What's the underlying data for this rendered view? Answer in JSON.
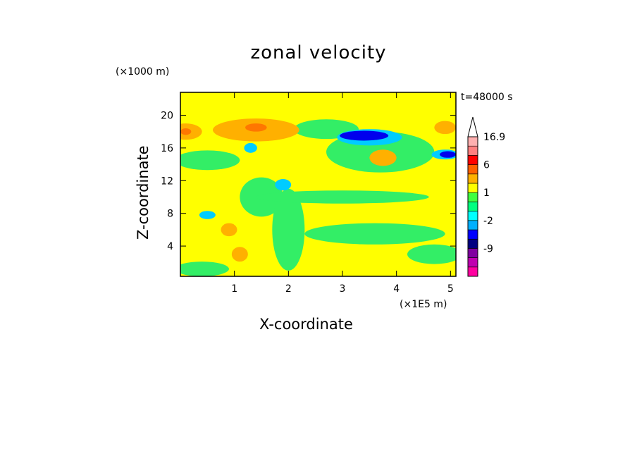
{
  "chart_data": {
    "type": "heatmap",
    "title": "zonal velocity",
    "xlabel": "X-coordinate",
    "ylabel": "Z-coordinate",
    "x_multiplier": "(×1E5 m)",
    "y_multiplier": "(×1000 m)",
    "time_label": "t=48000 s",
    "xlim": [
      0,
      5.1
    ],
    "ylim": [
      0.3,
      22.8
    ],
    "x_ticks": [
      "1",
      "2",
      "3",
      "4",
      "5"
    ],
    "x_tick_values": [
      1,
      2,
      3,
      4,
      5
    ],
    "y_ticks": [
      "20",
      "16",
      "12",
      "8",
      "4"
    ],
    "y_tick_values": [
      20,
      16,
      12,
      8,
      4
    ],
    "colorbar": {
      "labels": [
        "16.9",
        "6",
        "1",
        "-2",
        "-9"
      ],
      "levels": [
        -15,
        -12,
        -9,
        -6,
        -3,
        -2,
        -1,
        0,
        1,
        2,
        3,
        6,
        9,
        12,
        16.9
      ],
      "colors": [
        "#ff00a0",
        "#c000b0",
        "#8000a0",
        "#000080",
        "#0000ff",
        "#00b0ff",
        "#00ffff",
        "#00ff80",
        "#40ff40",
        "#ffff00",
        "#ffb000",
        "#ff6000",
        "#ff0000",
        "#ff8080",
        "#ffb0b0"
      ]
    },
    "field_colors": {
      "background": "#ffff00",
      "weak_negative": "#33ee66",
      "moderate_negative": "#00ccff",
      "strong_negative": "#0000ee",
      "weak_positive": "#ffb000",
      "moderate_positive": "#ff7700"
    },
    "features": [
      {
        "kind": "weak_negative",
        "x": 2.7,
        "y": 18.3,
        "rx": 0.6,
        "ry": 1.2
      },
      {
        "kind": "weak_negative",
        "x": 3.7,
        "y": 15.5,
        "rx": 1.0,
        "ry": 2.5
      },
      {
        "kind": "weak_negative",
        "x": 0.5,
        "y": 14.5,
        "rx": 0.6,
        "ry": 1.2
      },
      {
        "kind": "weak_negative",
        "x": 1.5,
        "y": 10.0,
        "rx": 0.4,
        "ry": 2.4
      },
      {
        "kind": "weak_negative",
        "x": 2.0,
        "y": 6.0,
        "rx": 0.3,
        "ry": 5.0
      },
      {
        "kind": "weak_negative",
        "x": 3.6,
        "y": 5.5,
        "rx": 1.3,
        "ry": 1.3
      },
      {
        "kind": "weak_negative",
        "x": 4.7,
        "y": 3.0,
        "rx": 0.5,
        "ry": 1.2
      },
      {
        "kind": "weak_negative",
        "x": 0.4,
        "y": 1.2,
        "rx": 0.5,
        "ry": 0.9
      },
      {
        "kind": "weak_negative",
        "x": 3.0,
        "y": 10.0,
        "rx": 1.6,
        "ry": 0.8
      },
      {
        "kind": "moderate_negative",
        "x": 3.5,
        "y": 17.3,
        "rx": 0.6,
        "ry": 1.0
      },
      {
        "kind": "moderate_negative",
        "x": 4.9,
        "y": 15.2,
        "rx": 0.25,
        "ry": 0.6
      },
      {
        "kind": "moderate_negative",
        "x": 0.5,
        "y": 7.8,
        "rx": 0.15,
        "ry": 0.5
      },
      {
        "kind": "moderate_negative",
        "x": 1.9,
        "y": 11.5,
        "rx": 0.15,
        "ry": 0.7
      },
      {
        "kind": "moderate_negative",
        "x": 1.3,
        "y": 16.0,
        "rx": 0.12,
        "ry": 0.6
      },
      {
        "kind": "strong_negative",
        "x": 3.4,
        "y": 17.5,
        "rx": 0.45,
        "ry": 0.6
      },
      {
        "kind": "strong_negative",
        "x": 4.95,
        "y": 15.2,
        "rx": 0.15,
        "ry": 0.4
      },
      {
        "kind": "weak_positive",
        "x": 1.4,
        "y": 18.2,
        "rx": 0.8,
        "ry": 1.4
      },
      {
        "kind": "weak_positive",
        "x": 0.1,
        "y": 18.0,
        "rx": 0.3,
        "ry": 1.0
      },
      {
        "kind": "weak_positive",
        "x": 3.75,
        "y": 14.8,
        "rx": 0.25,
        "ry": 1.0
      },
      {
        "kind": "weak_positive",
        "x": 0.9,
        "y": 6.0,
        "rx": 0.15,
        "ry": 0.8
      },
      {
        "kind": "weak_positive",
        "x": 1.1,
        "y": 3.0,
        "rx": 0.15,
        "ry": 0.9
      },
      {
        "kind": "weak_positive",
        "x": 4.9,
        "y": 18.5,
        "rx": 0.2,
        "ry": 0.8
      },
      {
        "kind": "moderate_positive",
        "x": 1.4,
        "y": 18.5,
        "rx": 0.2,
        "ry": 0.5
      },
      {
        "kind": "moderate_positive",
        "x": 0.1,
        "y": 18.0,
        "rx": 0.1,
        "ry": 0.4
      }
    ]
  }
}
